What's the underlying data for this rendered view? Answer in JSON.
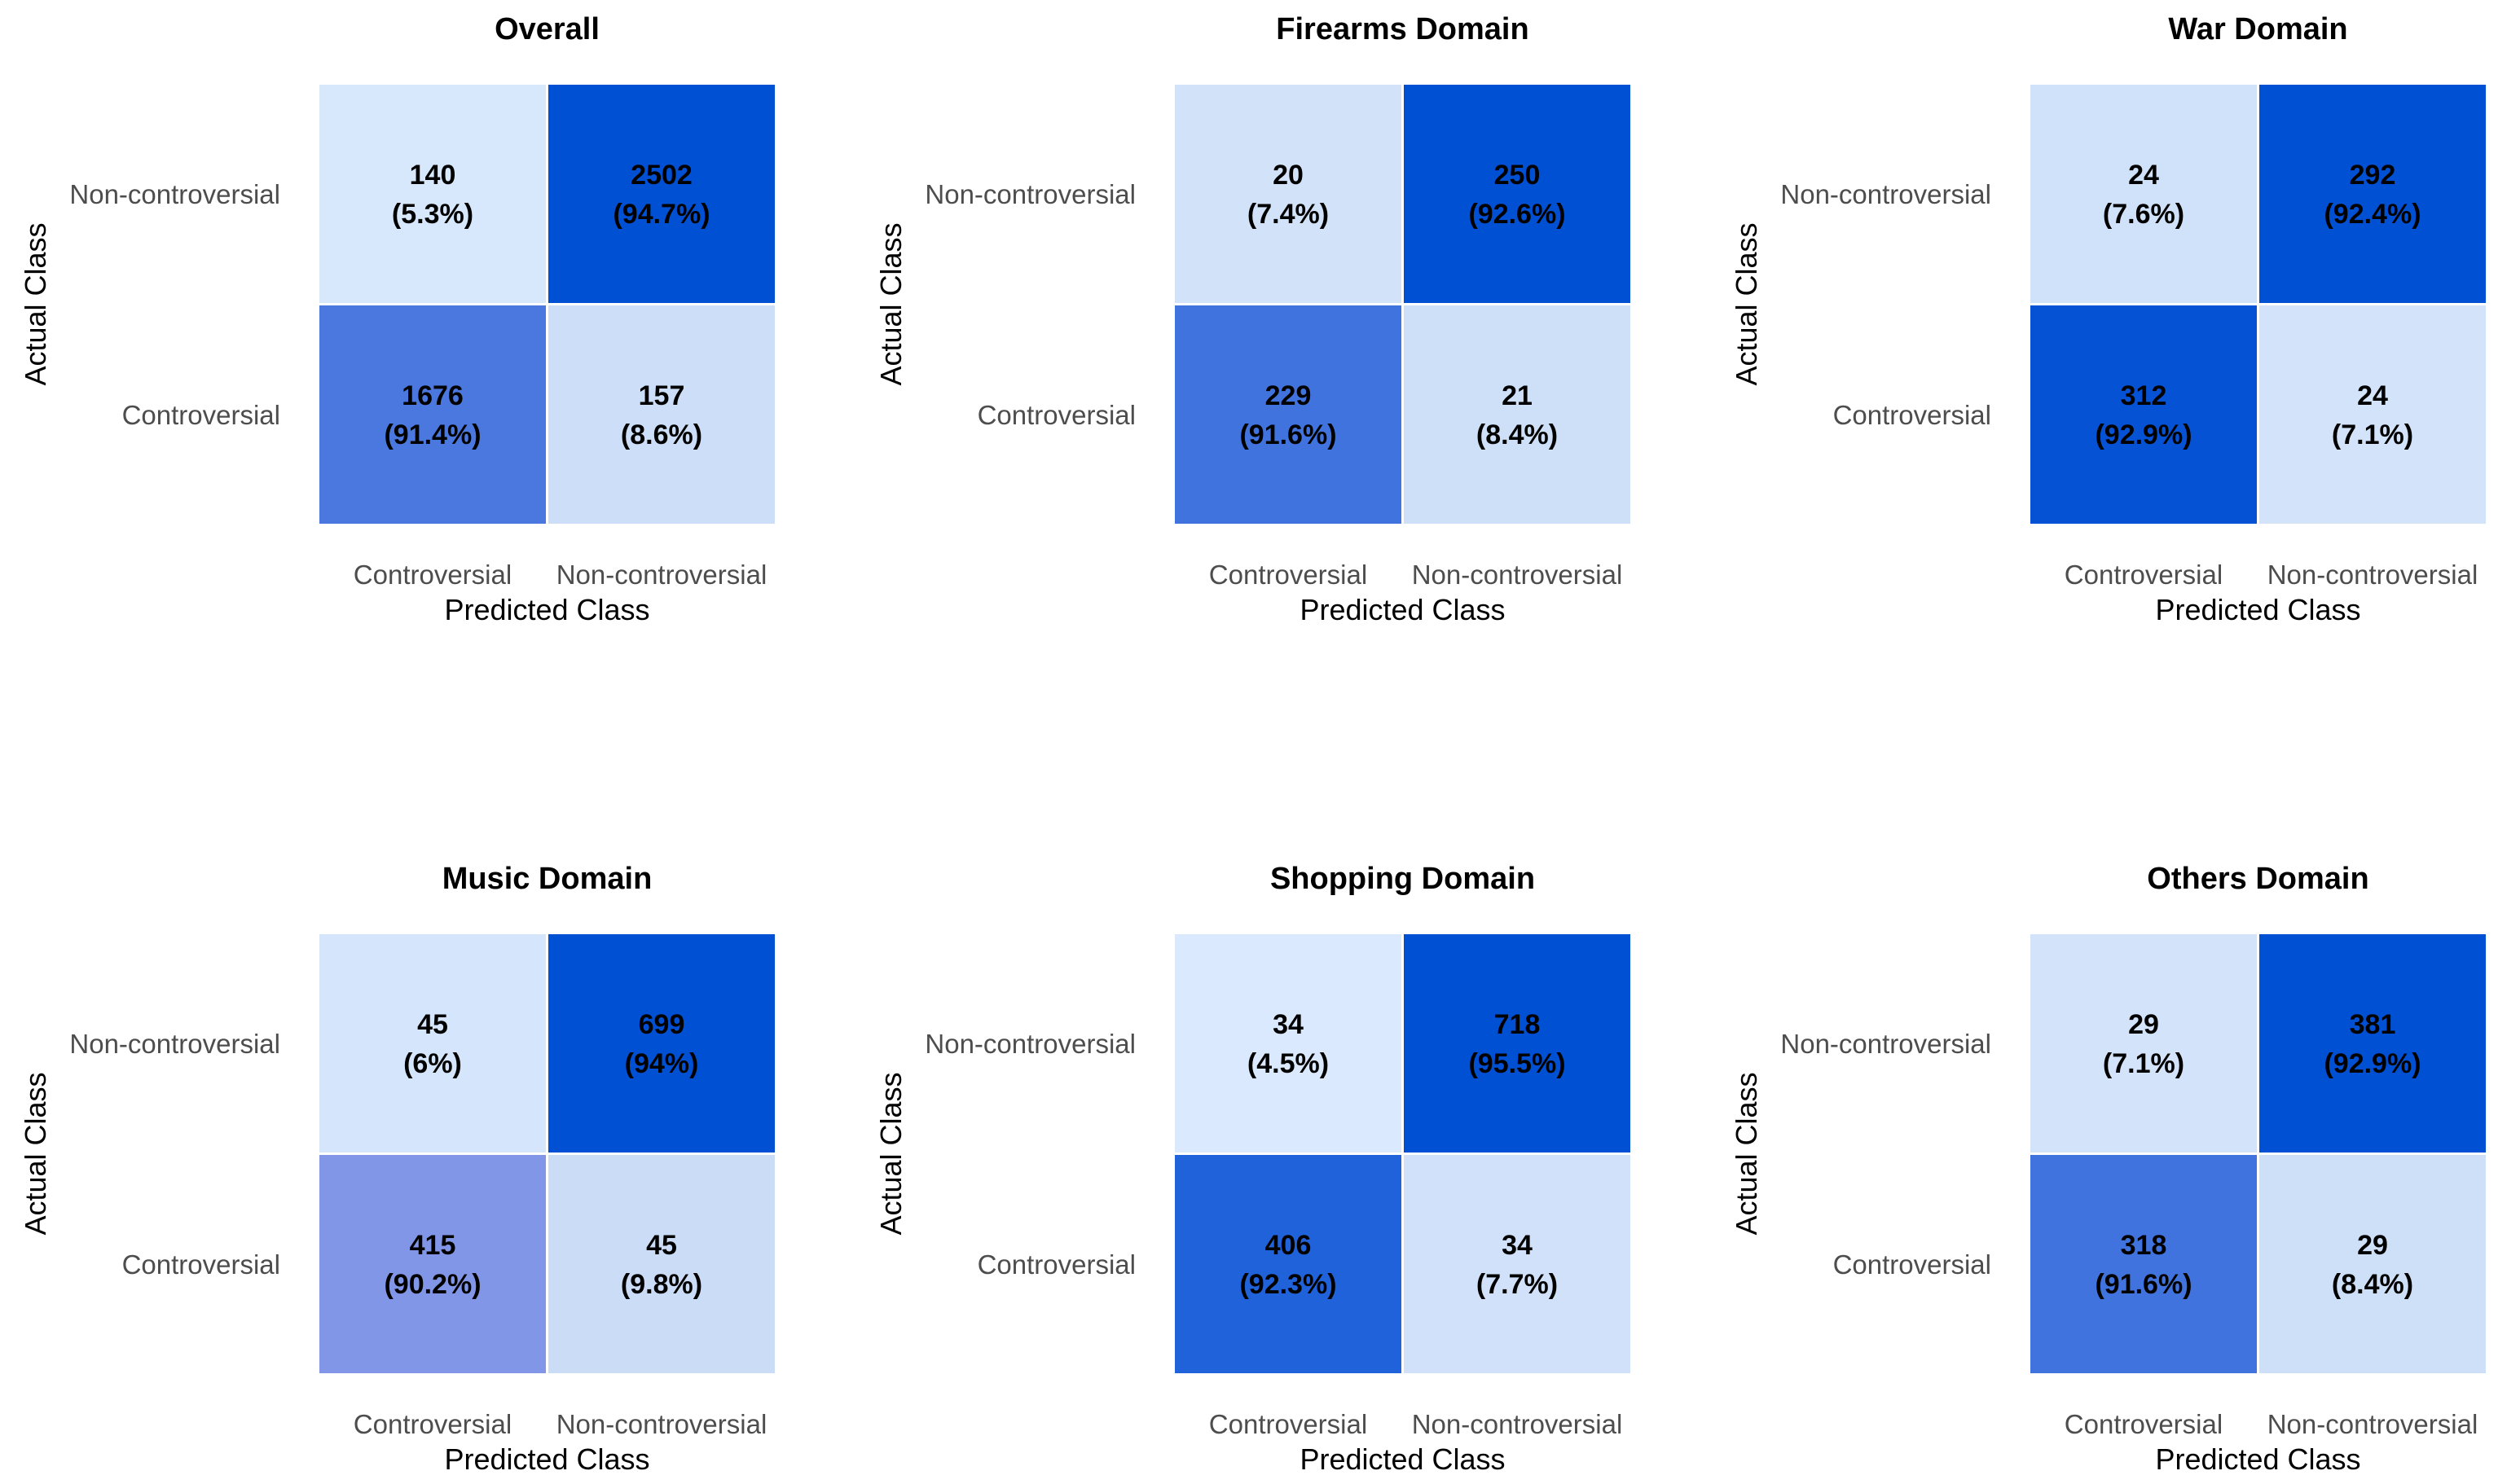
{
  "chart_data": [
    {
      "type": "heatmap",
      "title": "Overall",
      "xlabel": "Predicted Class",
      "ylabel": "Actual Class",
      "x_categories": [
        "Controversial",
        "Non-controversial"
      ],
      "y_categories": [
        "Non-controversial",
        "Controversial"
      ],
      "cells": [
        [
          {
            "count": "140",
            "pct": "(5.3%)",
            "value": 5.3
          },
          {
            "count": "2502",
            "pct": "(94.7%)",
            "value": 94.7
          }
        ],
        [
          {
            "count": "1676",
            "pct": "(91.4%)",
            "value": 91.4
          },
          {
            "count": "157",
            "pct": "(8.6%)",
            "value": 8.6
          }
        ]
      ]
    },
    {
      "type": "heatmap",
      "title": "Firearms Domain",
      "xlabel": "Predicted Class",
      "ylabel": "Actual Class",
      "x_categories": [
        "Controversial",
        "Non-controversial"
      ],
      "y_categories": [
        "Non-controversial",
        "Controversial"
      ],
      "cells": [
        [
          {
            "count": "20",
            "pct": "(7.4%)",
            "value": 7.4
          },
          {
            "count": "250",
            "pct": "(92.6%)",
            "value": 92.6
          }
        ],
        [
          {
            "count": "229",
            "pct": "(91.6%)",
            "value": 91.6
          },
          {
            "count": "21",
            "pct": "(8.4%)",
            "value": 8.4
          }
        ]
      ]
    },
    {
      "type": "heatmap",
      "title": "War Domain",
      "xlabel": "Predicted Class",
      "ylabel": "Actual Class",
      "x_categories": [
        "Controversial",
        "Non-controversial"
      ],
      "y_categories": [
        "Non-controversial",
        "Controversial"
      ],
      "cells": [
        [
          {
            "count": "24",
            "pct": "(7.6%)",
            "value": 7.6
          },
          {
            "count": "292",
            "pct": "(92.4%)",
            "value": 92.4
          }
        ],
        [
          {
            "count": "312",
            "pct": "(92.9%)",
            "value": 92.9
          },
          {
            "count": "24",
            "pct": "(7.1%)",
            "value": 7.1
          }
        ]
      ]
    },
    {
      "type": "heatmap",
      "title": "Music Domain",
      "xlabel": "Predicted Class",
      "ylabel": "Actual Class",
      "x_categories": [
        "Controversial",
        "Non-controversial"
      ],
      "y_categories": [
        "Non-controversial",
        "Controversial"
      ],
      "cells": [
        [
          {
            "count": "45",
            "pct": "(6%)",
            "value": 6.0
          },
          {
            "count": "699",
            "pct": "(94%)",
            "value": 94.0
          }
        ],
        [
          {
            "count": "415",
            "pct": "(90.2%)",
            "value": 90.2
          },
          {
            "count": "45",
            "pct": "(9.8%)",
            "value": 9.8
          }
        ]
      ]
    },
    {
      "type": "heatmap",
      "title": "Shopping Domain",
      "xlabel": "Predicted Class",
      "ylabel": "Actual Class",
      "x_categories": [
        "Controversial",
        "Non-controversial"
      ],
      "y_categories": [
        "Non-controversial",
        "Controversial"
      ],
      "cells": [
        [
          {
            "count": "34",
            "pct": "(4.5%)",
            "value": 4.5
          },
          {
            "count": "718",
            "pct": "(95.5%)",
            "value": 95.5
          }
        ],
        [
          {
            "count": "406",
            "pct": "(92.3%)",
            "value": 92.3
          },
          {
            "count": "34",
            "pct": "(7.7%)",
            "value": 7.7
          }
        ]
      ]
    },
    {
      "type": "heatmap",
      "title": "Others Domain",
      "xlabel": "Predicted Class",
      "ylabel": "Actual Class",
      "x_categories": [
        "Controversial",
        "Non-controversial"
      ],
      "y_categories": [
        "Non-controversial",
        "Controversial"
      ],
      "cells": [
        [
          {
            "count": "29",
            "pct": "(7.1%)",
            "value": 7.1
          },
          {
            "count": "381",
            "pct": "(92.9%)",
            "value": 92.9
          }
        ],
        [
          {
            "count": "318",
            "pct": "(91.6%)",
            "value": 91.6
          },
          {
            "count": "29",
            "pct": "(8.4%)",
            "value": 8.4
          }
        ]
      ]
    }
  ],
  "colors": {
    "low": "#dbeafe",
    "high": "#0050d4",
    "diag_low": "#8a9be8",
    "diag_high": "#0050d4",
    "cell_border": "#ffffff"
  }
}
